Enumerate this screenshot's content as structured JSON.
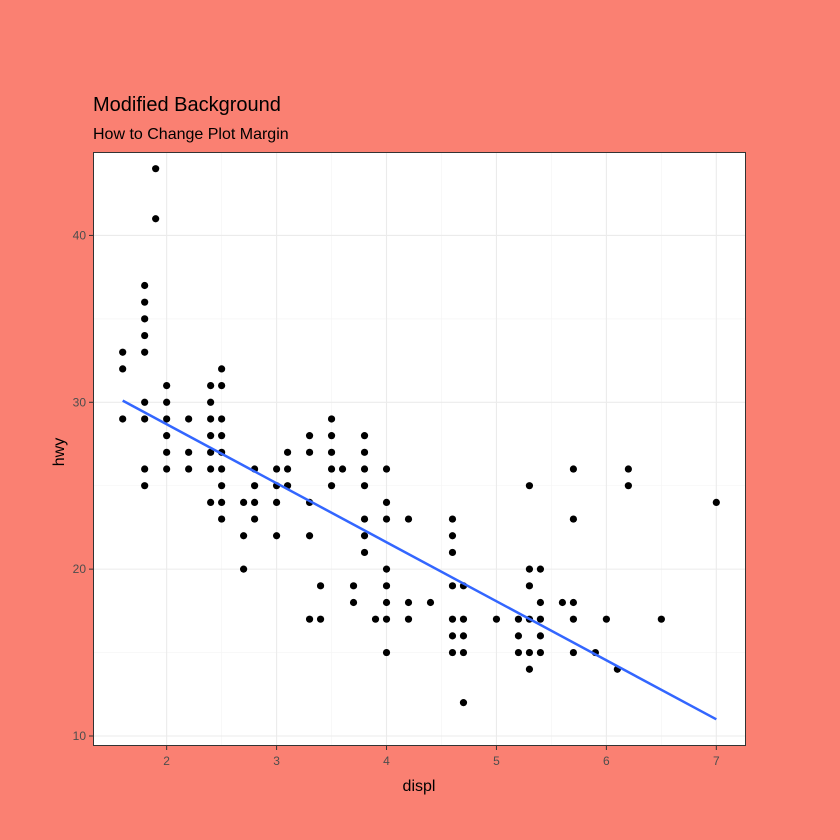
{
  "colors": {
    "background": "#FA8072",
    "panel": "#FFFFFF",
    "panel_border": "#333333",
    "grid_major": "#EBEBEB",
    "grid_minor": "#F5F5F5",
    "points": "#000000",
    "smooth_line": "#3366FF"
  },
  "chart_data": {
    "type": "scatter",
    "title": "Modified Background",
    "subtitle": "How to Change Plot Margin",
    "xlabel": "displ",
    "ylabel": "hwy",
    "xlim": [
      1.33,
      7.27
    ],
    "ylim": [
      9.4,
      45.0
    ],
    "xticks": [
      2,
      3,
      4,
      5,
      6,
      7
    ],
    "yticks": [
      10,
      20,
      30,
      40
    ],
    "grid": true,
    "legend": "none",
    "points": [
      {
        "x": 1.6,
        "y": 33
      },
      {
        "x": 1.6,
        "y": 32
      },
      {
        "x": 1.6,
        "y": 29
      },
      {
        "x": 1.8,
        "y": 37
      },
      {
        "x": 1.8,
        "y": 36
      },
      {
        "x": 1.8,
        "y": 35
      },
      {
        "x": 1.8,
        "y": 34
      },
      {
        "x": 1.8,
        "y": 33
      },
      {
        "x": 1.8,
        "y": 30
      },
      {
        "x": 1.8,
        "y": 29
      },
      {
        "x": 1.8,
        "y": 26
      },
      {
        "x": 1.8,
        "y": 25
      },
      {
        "x": 1.9,
        "y": 44
      },
      {
        "x": 1.9,
        "y": 41
      },
      {
        "x": 2.0,
        "y": 31
      },
      {
        "x": 2.0,
        "y": 30
      },
      {
        "x": 2.0,
        "y": 29
      },
      {
        "x": 2.0,
        "y": 28
      },
      {
        "x": 2.0,
        "y": 27
      },
      {
        "x": 2.0,
        "y": 26
      },
      {
        "x": 2.2,
        "y": 29
      },
      {
        "x": 2.2,
        "y": 27
      },
      {
        "x": 2.2,
        "y": 26
      },
      {
        "x": 2.4,
        "y": 31
      },
      {
        "x": 2.4,
        "y": 30
      },
      {
        "x": 2.4,
        "y": 29
      },
      {
        "x": 2.4,
        "y": 28
      },
      {
        "x": 2.4,
        "y": 27
      },
      {
        "x": 2.4,
        "y": 26
      },
      {
        "x": 2.4,
        "y": 24
      },
      {
        "x": 2.5,
        "y": 32
      },
      {
        "x": 2.5,
        "y": 31
      },
      {
        "x": 2.5,
        "y": 29
      },
      {
        "x": 2.5,
        "y": 28
      },
      {
        "x": 2.5,
        "y": 27
      },
      {
        "x": 2.5,
        "y": 26
      },
      {
        "x": 2.5,
        "y": 25
      },
      {
        "x": 2.5,
        "y": 24
      },
      {
        "x": 2.5,
        "y": 23
      },
      {
        "x": 2.7,
        "y": 24
      },
      {
        "x": 2.7,
        "y": 22
      },
      {
        "x": 2.7,
        "y": 20
      },
      {
        "x": 2.8,
        "y": 26
      },
      {
        "x": 2.8,
        "y": 25
      },
      {
        "x": 2.8,
        "y": 24
      },
      {
        "x": 2.8,
        "y": 23
      },
      {
        "x": 3.0,
        "y": 26
      },
      {
        "x": 3.0,
        "y": 25
      },
      {
        "x": 3.0,
        "y": 24
      },
      {
        "x": 3.0,
        "y": 22
      },
      {
        "x": 3.1,
        "y": 27
      },
      {
        "x": 3.1,
        "y": 26
      },
      {
        "x": 3.1,
        "y": 25
      },
      {
        "x": 3.3,
        "y": 28
      },
      {
        "x": 3.3,
        "y": 27
      },
      {
        "x": 3.3,
        "y": 24
      },
      {
        "x": 3.3,
        "y": 22
      },
      {
        "x": 3.3,
        "y": 17
      },
      {
        "x": 3.4,
        "y": 19
      },
      {
        "x": 3.4,
        "y": 17
      },
      {
        "x": 3.5,
        "y": 29
      },
      {
        "x": 3.5,
        "y": 28
      },
      {
        "x": 3.5,
        "y": 27
      },
      {
        "x": 3.5,
        "y": 26
      },
      {
        "x": 3.5,
        "y": 25
      },
      {
        "x": 3.6,
        "y": 26
      },
      {
        "x": 3.7,
        "y": 19
      },
      {
        "x": 3.7,
        "y": 18
      },
      {
        "x": 3.8,
        "y": 28
      },
      {
        "x": 3.8,
        "y": 27
      },
      {
        "x": 3.8,
        "y": 26
      },
      {
        "x": 3.8,
        "y": 25
      },
      {
        "x": 3.8,
        "y": 23
      },
      {
        "x": 3.8,
        "y": 22
      },
      {
        "x": 3.8,
        "y": 21
      },
      {
        "x": 3.9,
        "y": 17
      },
      {
        "x": 4.0,
        "y": 26
      },
      {
        "x": 4.0,
        "y": 24
      },
      {
        "x": 4.0,
        "y": 23
      },
      {
        "x": 4.0,
        "y": 20
      },
      {
        "x": 4.0,
        "y": 19
      },
      {
        "x": 4.0,
        "y": 18
      },
      {
        "x": 4.0,
        "y": 17
      },
      {
        "x": 4.0,
        "y": 15
      },
      {
        "x": 4.2,
        "y": 23
      },
      {
        "x": 4.2,
        "y": 18
      },
      {
        "x": 4.2,
        "y": 17
      },
      {
        "x": 4.4,
        "y": 18
      },
      {
        "x": 4.6,
        "y": 23
      },
      {
        "x": 4.6,
        "y": 22
      },
      {
        "x": 4.6,
        "y": 21
      },
      {
        "x": 4.6,
        "y": 19
      },
      {
        "x": 4.6,
        "y": 17
      },
      {
        "x": 4.6,
        "y": 16
      },
      {
        "x": 4.6,
        "y": 15
      },
      {
        "x": 4.7,
        "y": 19
      },
      {
        "x": 4.7,
        "y": 17
      },
      {
        "x": 4.7,
        "y": 16
      },
      {
        "x": 4.7,
        "y": 15
      },
      {
        "x": 4.7,
        "y": 12
      },
      {
        "x": 5.0,
        "y": 17
      },
      {
        "x": 5.2,
        "y": 17
      },
      {
        "x": 5.2,
        "y": 16
      },
      {
        "x": 5.2,
        "y": 15
      },
      {
        "x": 5.3,
        "y": 25
      },
      {
        "x": 5.3,
        "y": 20
      },
      {
        "x": 5.3,
        "y": 19
      },
      {
        "x": 5.3,
        "y": 17
      },
      {
        "x": 5.3,
        "y": 15
      },
      {
        "x": 5.3,
        "y": 14
      },
      {
        "x": 5.4,
        "y": 20
      },
      {
        "x": 5.4,
        "y": 18
      },
      {
        "x": 5.4,
        "y": 17
      },
      {
        "x": 5.4,
        "y": 16
      },
      {
        "x": 5.4,
        "y": 15
      },
      {
        "x": 5.6,
        "y": 18
      },
      {
        "x": 5.7,
        "y": 26
      },
      {
        "x": 5.7,
        "y": 23
      },
      {
        "x": 5.7,
        "y": 18
      },
      {
        "x": 5.7,
        "y": 17
      },
      {
        "x": 5.7,
        "y": 15
      },
      {
        "x": 5.9,
        "y": 15
      },
      {
        "x": 6.0,
        "y": 17
      },
      {
        "x": 6.1,
        "y": 14
      },
      {
        "x": 6.2,
        "y": 26
      },
      {
        "x": 6.2,
        "y": 25
      },
      {
        "x": 6.5,
        "y": 17
      },
      {
        "x": 7.0,
        "y": 24
      }
    ],
    "trend_line": {
      "type": "linear",
      "x": [
        1.6,
        7.0
      ],
      "y": [
        30.1,
        11.0
      ]
    }
  }
}
